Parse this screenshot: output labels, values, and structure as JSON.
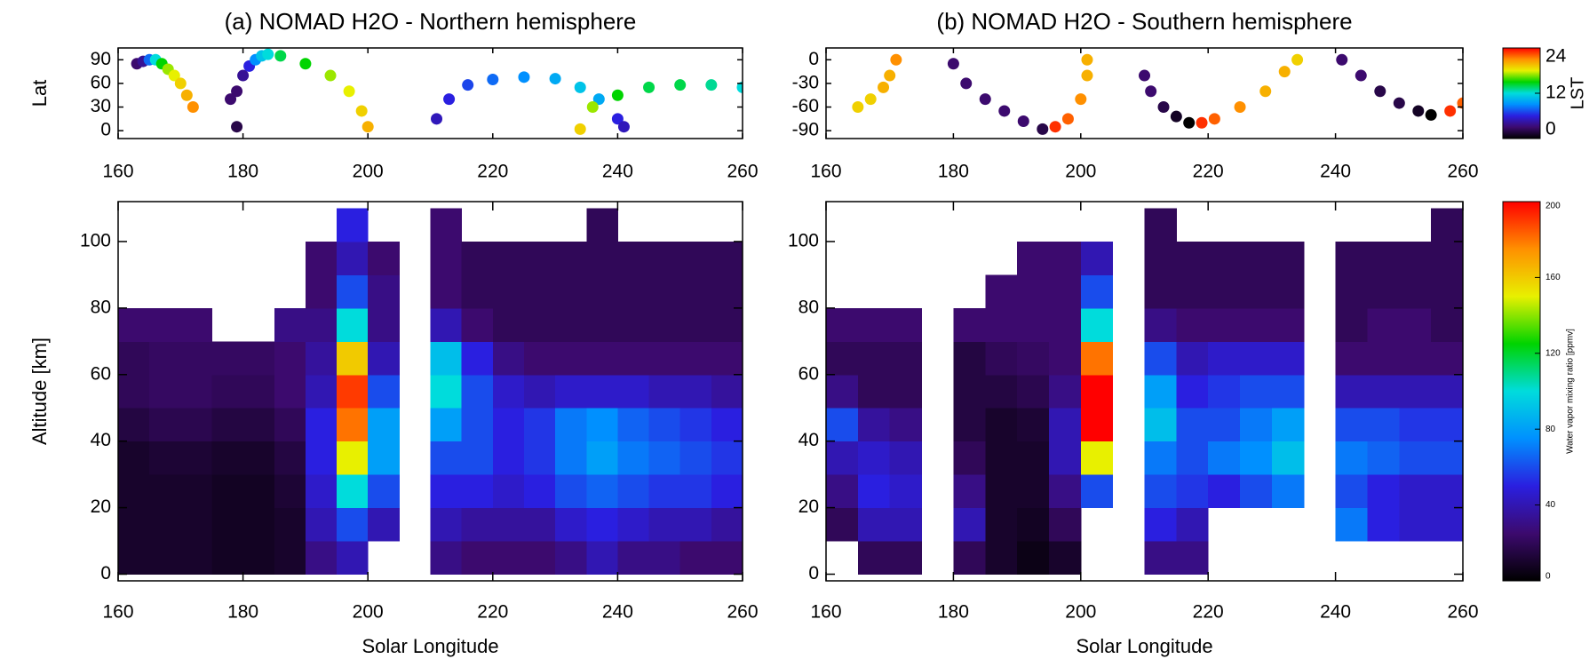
{
  "chart_data": [
    {
      "type": "scatter",
      "title": "(a) NOMAD H2O - Northern hemisphere",
      "ylabel": "Lat",
      "xlim": [
        160,
        260
      ],
      "xticks": [
        160,
        180,
        200,
        220,
        240,
        260
      ],
      "ylim": [
        -10,
        105
      ],
      "yticks": [
        0,
        30,
        60,
        90
      ],
      "series": [
        {
          "x": [
            163,
            164,
            165,
            166,
            167,
            168,
            169,
            170,
            171,
            172
          ],
          "values": [
            85,
            88,
            90,
            90,
            85,
            78,
            70,
            60,
            45,
            30
          ],
          "lst": [
            3,
            4,
            8,
            12,
            15,
            17,
            18,
            19,
            20,
            21
          ]
        },
        {
          "x": [
            179,
            178,
            179,
            180,
            181,
            182,
            183,
            184,
            186,
            190,
            194,
            197,
            199,
            200
          ],
          "values": [
            5,
            40,
            50,
            70,
            82,
            90,
            95,
            97,
            95,
            85,
            70,
            50,
            25,
            5
          ],
          "lst": [
            2,
            3,
            3,
            4,
            6,
            9,
            11,
            12,
            14,
            15,
            17,
            18,
            19,
            20
          ]
        },
        {
          "x": [
            211,
            213,
            216,
            220,
            225,
            230,
            234,
            237,
            240,
            241
          ],
          "values": [
            15,
            40,
            58,
            65,
            68,
            66,
            55,
            40,
            15,
            5
          ],
          "lst": [
            5,
            6,
            7,
            8,
            9,
            10,
            11,
            10,
            6,
            5
          ]
        },
        {
          "x": [
            234,
            236,
            240,
            245,
            250,
            255,
            260
          ],
          "values": [
            2,
            30,
            45,
            55,
            58,
            58,
            55
          ],
          "lst": [
            19,
            17,
            15,
            14,
            14,
            13,
            12
          ]
        }
      ]
    },
    {
      "type": "heatmap",
      "ylabel": "Altitude [km]",
      "xlabel": "Solar Longitude",
      "xlim": [
        160,
        260
      ],
      "xticks": [
        160,
        180,
        200,
        220,
        240,
        260
      ],
      "ylim": [
        -2,
        112
      ],
      "yticks": [
        0,
        20,
        40,
        60,
        80,
        100
      ],
      "xbins": [
        160,
        165,
        170,
        175,
        180,
        185,
        190,
        195,
        200,
        205,
        210,
        215,
        220,
        225,
        230,
        235,
        240,
        245,
        250,
        255,
        260
      ],
      "ybins": [
        0,
        10,
        20,
        30,
        40,
        50,
        60,
        70,
        80,
        90,
        100,
        110
      ],
      "values": [
        [
          10,
          10,
          10,
          10,
          15,
          20,
          20,
          25,
          null,
          null,
          null
        ],
        [
          10,
          10,
          10,
          12,
          18,
          22,
          22,
          25,
          null,
          null,
          null
        ],
        [
          10,
          10,
          10,
          12,
          18,
          22,
          22,
          25,
          null,
          null,
          null
        ],
        [
          8,
          8,
          8,
          10,
          15,
          20,
          22,
          null,
          null,
          null,
          null
        ],
        [
          8,
          8,
          8,
          10,
          15,
          20,
          22,
          null,
          null,
          null,
          null
        ],
        [
          10,
          10,
          12,
          15,
          20,
          25,
          25,
          30,
          null,
          null,
          null
        ],
        [
          30,
          40,
          45,
          50,
          50,
          40,
          35,
          30,
          25,
          25,
          null
        ],
        [
          40,
          60,
          100,
          150,
          180,
          190,
          160,
          100,
          60,
          40,
          50
        ],
        [
          null,
          40,
          60,
          80,
          80,
          60,
          40,
          30,
          30,
          25,
          null
        ],
        [
          null,
          null,
          null,
          null,
          null,
          null,
          null,
          null,
          null,
          null,
          null
        ],
        [
          30,
          40,
          50,
          60,
          80,
          100,
          90,
          40,
          25,
          25,
          25
        ],
        [
          25,
          35,
          50,
          60,
          60,
          60,
          50,
          25,
          20,
          20,
          null
        ],
        [
          25,
          35,
          45,
          50,
          50,
          45,
          30,
          20,
          20,
          20,
          null
        ],
        [
          25,
          35,
          50,
          55,
          55,
          40,
          25,
          20,
          20,
          20,
          null
        ],
        [
          30,
          45,
          60,
          70,
          70,
          45,
          25,
          20,
          20,
          20,
          null
        ],
        [
          40,
          50,
          65,
          80,
          75,
          45,
          25,
          20,
          20,
          20,
          20
        ],
        [
          30,
          45,
          60,
          70,
          65,
          45,
          25,
          20,
          20,
          20,
          null
        ],
        [
          30,
          40,
          55,
          65,
          60,
          40,
          25,
          20,
          20,
          20,
          null
        ],
        [
          25,
          40,
          55,
          60,
          55,
          40,
          25,
          20,
          20,
          20,
          null
        ],
        [
          25,
          35,
          50,
          55,
          50,
          35,
          25,
          20,
          20,
          20,
          null
        ]
      ]
    },
    {
      "type": "scatter",
      "title": "(b) NOMAD H2O - Southern hemisphere",
      "xlim": [
        160,
        260
      ],
      "xticks": [
        160,
        180,
        200,
        220,
        240,
        260
      ],
      "ylim": [
        -100,
        15
      ],
      "yticks": [
        0,
        -30,
        -60,
        -90
      ],
      "series": [
        {
          "x": [
            165,
            167,
            169,
            170,
            171
          ],
          "values": [
            -60,
            -50,
            -35,
            -20,
            0
          ],
          "lst": [
            19,
            19,
            20,
            20,
            21
          ]
        },
        {
          "x": [
            180,
            182,
            185,
            188,
            191,
            194,
            196,
            198,
            200,
            201,
            201
          ],
          "values": [
            -5,
            -30,
            -50,
            -65,
            -78,
            -88,
            -85,
            -75,
            -50,
            -20,
            0
          ],
          "lst": [
            3,
            3,
            3,
            3,
            3,
            2,
            23,
            22,
            21,
            20,
            20
          ]
        },
        {
          "x": [
            210,
            211,
            213,
            215,
            217,
            219,
            221,
            225,
            229,
            232,
            234
          ],
          "values": [
            -20,
            -40,
            -60,
            -72,
            -80,
            -80,
            -75,
            -60,
            -40,
            -15,
            0
          ],
          "lst": [
            3,
            3,
            2,
            1,
            0,
            23,
            22,
            21,
            20,
            20,
            19
          ]
        },
        {
          "x": [
            241,
            244,
            247,
            250,
            253,
            255,
            258,
            260
          ],
          "values": [
            0,
            -20,
            -40,
            -55,
            -65,
            -70,
            -65,
            -55
          ],
          "lst": [
            3,
            3,
            2,
            2,
            1,
            0,
            23,
            22
          ]
        }
      ]
    },
    {
      "type": "heatmap",
      "xlabel": "Solar Longitude",
      "xlim": [
        160,
        260
      ],
      "xticks": [
        160,
        180,
        200,
        220,
        240,
        260
      ],
      "ylim": [
        -2,
        112
      ],
      "yticks": [
        0,
        20,
        40,
        60,
        80,
        100
      ],
      "xbins": [
        160,
        165,
        170,
        175,
        180,
        185,
        190,
        195,
        200,
        205,
        210,
        215,
        220,
        225,
        230,
        235,
        240,
        245,
        250,
        255,
        260
      ],
      "ybins": [
        0,
        10,
        20,
        30,
        40,
        50,
        60,
        70,
        80,
        90,
        100,
        110
      ],
      "values": [
        [
          null,
          20,
          30,
          40,
          60,
          30,
          20,
          25,
          null,
          null,
          null
        ],
        [
          20,
          40,
          50,
          45,
          35,
          20,
          20,
          25,
          null,
          null,
          null
        ],
        [
          20,
          40,
          45,
          40,
          30,
          20,
          20,
          25,
          null,
          null,
          null
        ],
        [
          null,
          null,
          null,
          null,
          null,
          null,
          null,
          null,
          null,
          null,
          null
        ],
        [
          20,
          40,
          30,
          20,
          15,
          15,
          15,
          25,
          null,
          null,
          null
        ],
        [
          10,
          10,
          10,
          10,
          10,
          15,
          20,
          25,
          25,
          null,
          null
        ],
        [
          5,
          8,
          10,
          10,
          12,
          18,
          22,
          25,
          25,
          25,
          null
        ],
        [
          10,
          20,
          30,
          40,
          40,
          30,
          25,
          25,
          25,
          25,
          null
        ],
        [
          null,
          null,
          60,
          150,
          200,
          200,
          180,
          100,
          60,
          40,
          null
        ],
        [
          null,
          null,
          null,
          null,
          null,
          null,
          null,
          null,
          null,
          null,
          null
        ],
        [
          30,
          50,
          60,
          70,
          90,
          80,
          60,
          30,
          20,
          20,
          20
        ],
        [
          30,
          40,
          55,
          60,
          60,
          50,
          40,
          25,
          20,
          20,
          null
        ],
        [
          null,
          null,
          50,
          70,
          60,
          55,
          45,
          25,
          20,
          20,
          null
        ],
        [
          null,
          null,
          60,
          75,
          70,
          60,
          45,
          25,
          20,
          20,
          null
        ],
        [
          null,
          null,
          70,
          90,
          80,
          60,
          45,
          25,
          20,
          20,
          null
        ],
        [
          null,
          null,
          null,
          null,
          null,
          null,
          null,
          null,
          null,
          null,
          null
        ],
        [
          null,
          70,
          60,
          70,
          60,
          40,
          25,
          20,
          20,
          20,
          null
        ],
        [
          null,
          50,
          50,
          65,
          60,
          40,
          25,
          25,
          20,
          20,
          null
        ],
        [
          null,
          45,
          45,
          60,
          55,
          40,
          25,
          25,
          20,
          20,
          null
        ],
        [
          null,
          45,
          45,
          60,
          55,
          40,
          25,
          20,
          20,
          20,
          20
        ]
      ]
    },
    {
      "type": "colorbar",
      "label": "LST",
      "lim": [
        0,
        24
      ],
      "ticks": [
        0,
        12,
        24
      ],
      "colors": [
        "#000000",
        "#3c0a6e",
        "#2a1fe0",
        "#0090ff",
        "#00dcdc",
        "#00d400",
        "#e8f000",
        "#ff9000",
        "#ff0000"
      ]
    },
    {
      "type": "colorbar",
      "label": "Water vapor mixing ratio [ppmv]",
      "lim": [
        0,
        200
      ],
      "ticks": [
        0,
        40,
        80,
        120,
        160,
        200
      ],
      "colors": [
        "#000000",
        "#3c0a6e",
        "#2a1fe0",
        "#0090ff",
        "#00dcdc",
        "#00d400",
        "#e8f000",
        "#ff9000",
        "#ff0000"
      ]
    }
  ]
}
